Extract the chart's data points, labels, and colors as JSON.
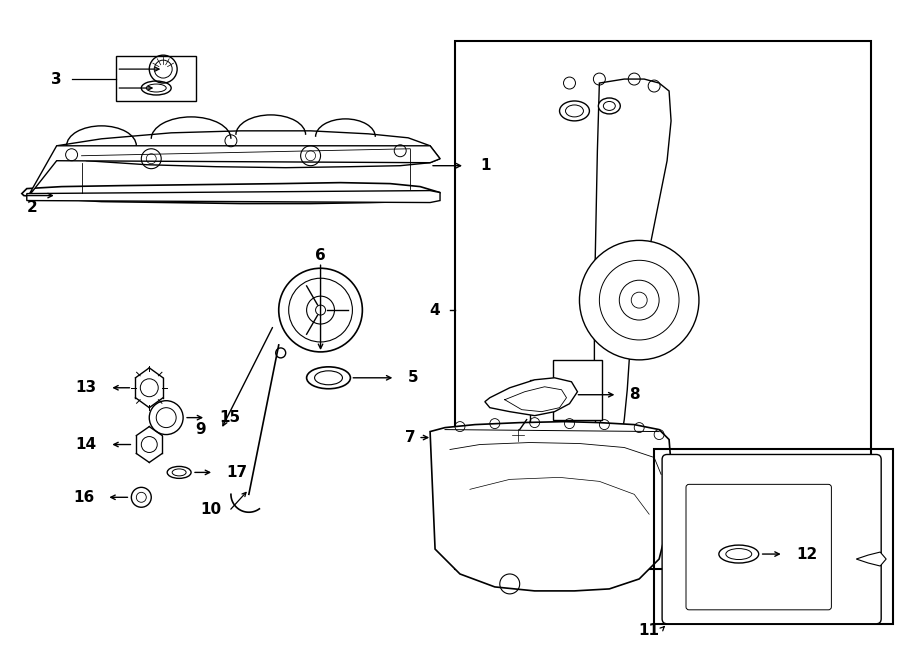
{
  "bg_color": "#ffffff",
  "line_color": "#000000",
  "fig_w": 9.0,
  "fig_h": 6.61,
  "dpi": 100,
  "label_fs": 11
}
